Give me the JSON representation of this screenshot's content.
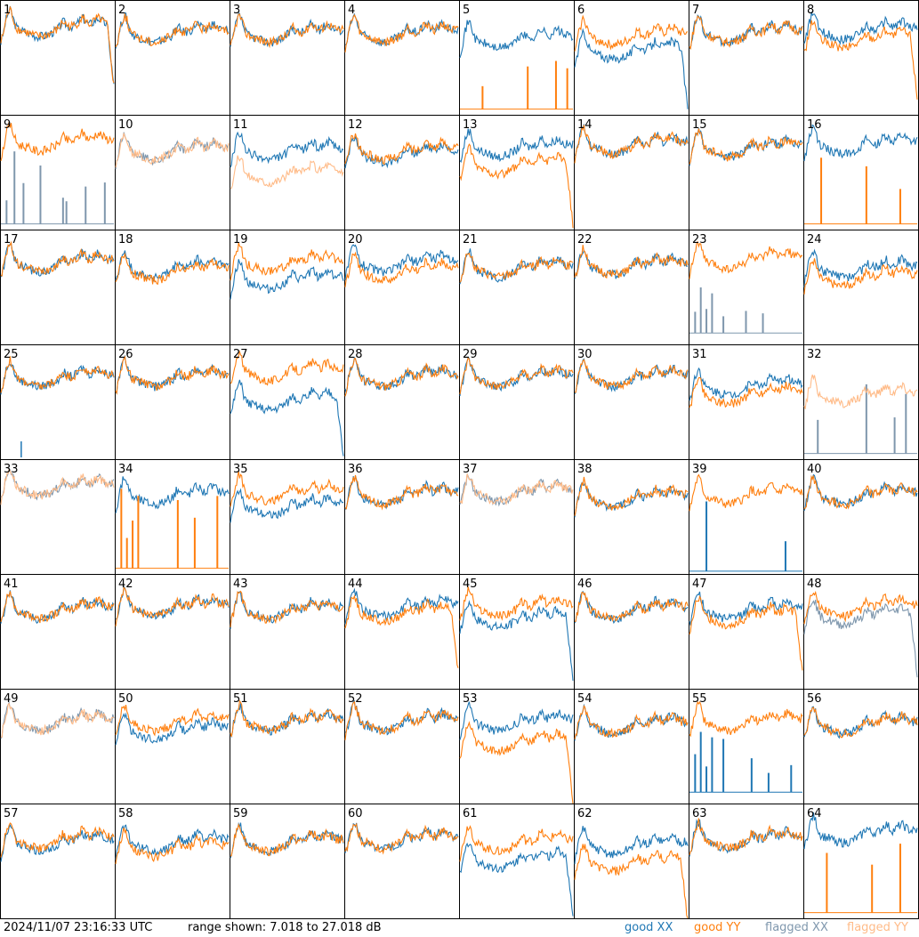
{
  "chart_data": {
    "type": "line",
    "panel_count": 64,
    "columns": 8,
    "rows": 8,
    "panel_labels": [
      "1",
      "2",
      "3",
      "4",
      "5",
      "6",
      "7",
      "8",
      "9",
      "10",
      "11",
      "12",
      "13",
      "14",
      "15",
      "16",
      "17",
      "18",
      "19",
      "20",
      "21",
      "22",
      "23",
      "24",
      "25",
      "26",
      "27",
      "28",
      "29",
      "30",
      "31",
      "32",
      "33",
      "34",
      "35",
      "36",
      "37",
      "38",
      "39",
      "40",
      "41",
      "42",
      "43",
      "44",
      "45",
      "46",
      "47",
      "48",
      "49",
      "50",
      "51",
      "52",
      "53",
      "54",
      "55",
      "56",
      "57",
      "58",
      "59",
      "60",
      "61",
      "62",
      "63",
      "64"
    ],
    "ylim": [
      7.018,
      27.018
    ],
    "series_styles": {
      "good_xx": "#1f77b4",
      "good_yy": "#ff7f0e",
      "flagged_xx": "#7f97ad",
      "flagged_yy": "#ffbb88"
    },
    "panels": [
      {
        "xx": "good",
        "yy": "good",
        "xx_level": 23.5,
        "yy_level": 23.5,
        "xx_drop": 1,
        "yy_drop": 1
      },
      {
        "xx": "good",
        "yy": "good",
        "xx_level": 22.5,
        "yy_level": 22.5
      },
      {
        "xx": "good",
        "yy": "good",
        "xx_level": 22.5,
        "yy_level": 22.5
      },
      {
        "xx": "good",
        "yy": "good",
        "xx_level": 22.5,
        "yy_level": 22.5
      },
      {
        "xx": "good",
        "yy": "spiky",
        "xx_level": 21.5,
        "yy_level": 8.0,
        "spikes": [
          0.2,
          0.6,
          0.85,
          0.95
        ]
      },
      {
        "xx": "good",
        "yy": "good",
        "xx_level": 19.5,
        "yy_level": 22.0,
        "xx_drop": 1
      },
      {
        "xx": "good",
        "yy": "good",
        "xx_level": 22.5,
        "yy_level": 22.5
      },
      {
        "xx": "good",
        "yy": "good",
        "xx_level": 23.0,
        "yy_level": 21.5,
        "yy_drop": 1
      },
      {
        "xx": "flagged_spiky",
        "yy": "good",
        "xx_level": 8.0,
        "yy_level": 23.5,
        "spikes": [
          0.05,
          0.12,
          0.2,
          0.35,
          0.55,
          0.58,
          0.75,
          0.92
        ]
      },
      {
        "xx": "flagged",
        "yy": "flagged",
        "xx_level": 22.0,
        "yy_level": 22.0
      },
      {
        "xx": "good",
        "yy": "flagged",
        "xx_level": 22.0,
        "yy_level": 18.0
      },
      {
        "xx": "good",
        "yy": "good",
        "xx_level": 21.5,
        "yy_level": 22.0
      },
      {
        "xx": "good",
        "yy": "good",
        "xx_level": 22.5,
        "yy_level": 19.5,
        "yy_drop": 1
      },
      {
        "xx": "good",
        "yy": "good",
        "xx_level": 23.0,
        "yy_level": 23.0
      },
      {
        "xx": "good",
        "yy": "good",
        "xx_level": 22.5,
        "yy_level": 22.5
      },
      {
        "xx": "good",
        "yy": "spiky",
        "xx_level": 23.0,
        "yy_level": 8.0,
        "spikes": [
          0.15,
          0.55,
          0.85
        ]
      },
      {
        "xx": "good",
        "yy": "good",
        "xx_level": 22.5,
        "yy_level": 22.5
      },
      {
        "xx": "good",
        "yy": "good",
        "xx_level": 21.5,
        "yy_level": 21.0
      },
      {
        "xx": "good",
        "yy": "good",
        "xx_level": 19.5,
        "yy_level": 22.5
      },
      {
        "xx": "good",
        "yy": "good",
        "xx_level": 22.5,
        "yy_level": 21.0
      },
      {
        "xx": "good",
        "yy": "good",
        "xx_level": 21.5,
        "yy_level": 21.5
      },
      {
        "xx": "good",
        "yy": "good",
        "xx_level": 22.0,
        "yy_level": 22.0
      },
      {
        "xx": "flagged_spiky",
        "yy": "good",
        "xx_level": 9.0,
        "yy_level": 23.0,
        "spikes": [
          0.05,
          0.1,
          0.15,
          0.2,
          0.3,
          0.5,
          0.65
        ]
      },
      {
        "xx": "good",
        "yy": "good",
        "xx_level": 21.5,
        "yy_level": 20.0
      },
      {
        "xx": "good",
        "yy": "good",
        "xx_level": 22.5,
        "yy_level": 22.5,
        "marker": 0.18
      },
      {
        "xx": "good",
        "yy": "good",
        "xx_level": 22.5,
        "yy_level": 22.5
      },
      {
        "xx": "good",
        "yy": "good",
        "xx_level": 18.5,
        "yy_level": 23.5,
        "xx_drop": 1
      },
      {
        "xx": "good",
        "yy": "good",
        "xx_level": 22.5,
        "yy_level": 22.5
      },
      {
        "xx": "good",
        "yy": "good",
        "xx_level": 22.5,
        "yy_level": 22.5
      },
      {
        "xx": "good",
        "yy": "good",
        "xx_level": 22.5,
        "yy_level": 22.5
      },
      {
        "xx": "good",
        "yy": "good",
        "xx_level": 21.0,
        "yy_level": 19.5
      },
      {
        "xx": "flagged_spiky",
        "yy": "flagged",
        "xx_level": 8.0,
        "yy_level": 19.5,
        "spikes": [
          0.12,
          0.55,
          0.8,
          0.9
        ]
      },
      {
        "xx": "flagged",
        "yy": "flagged",
        "xx_level": 23.5,
        "yy_level": 23.5
      },
      {
        "xx": "good",
        "yy": "spiky_good",
        "xx_level": 22.0,
        "yy_level": 8.0,
        "spikes": [
          0.05,
          0.1,
          0.15,
          0.2,
          0.55,
          0.7,
          0.9
        ]
      },
      {
        "xx": "good",
        "yy": "good",
        "xx_level": 20.0,
        "yy_level": 22.5
      },
      {
        "xx": "good",
        "yy": "good",
        "xx_level": 22.0,
        "yy_level": 22.0
      },
      {
        "xx": "flagged",
        "yy": "flagged",
        "xx_level": 22.5,
        "yy_level": 22.5
      },
      {
        "xx": "good",
        "yy": "good",
        "xx_level": 21.5,
        "yy_level": 21.5
      },
      {
        "xx": "spiky",
        "yy": "good",
        "xx_level": 7.5,
        "yy_level": 22.0,
        "spikes": [
          0.15,
          0.85
        ]
      },
      {
        "xx": "good",
        "yy": "good",
        "xx_level": 22.0,
        "yy_level": 22.0
      },
      {
        "xx": "good",
        "yy": "good",
        "xx_level": 22.0,
        "yy_level": 22.0
      },
      {
        "xx": "good",
        "yy": "good",
        "xx_level": 22.5,
        "yy_level": 22.5
      },
      {
        "xx": "good",
        "yy": "good",
        "xx_level": 22.0,
        "yy_level": 22.0
      },
      {
        "xx": "good",
        "yy": "good",
        "xx_level": 22.5,
        "yy_level": 21.5,
        "yy_drop": 1
      },
      {
        "xx": "good",
        "yy": "good",
        "xx_level": 20.5,
        "yy_level": 22.5,
        "xx_drop": 1
      },
      {
        "xx": "good",
        "yy": "good",
        "xx_level": 22.0,
        "yy_level": 22.0
      },
      {
        "xx": "good",
        "yy": "good",
        "xx_level": 22.0,
        "yy_level": 21.0,
        "yy_drop": 1
      },
      {
        "xx": "flagged",
        "yy": "good",
        "xx_level": 21.0,
        "yy_level": 22.5,
        "xx_drop": 1
      },
      {
        "xx": "flagged",
        "yy": "flagged",
        "xx_level": 22.5,
        "yy_level": 22.5
      },
      {
        "xx": "good",
        "yy": "good",
        "xx_level": 21.0,
        "yy_level": 22.5
      },
      {
        "xx": "good",
        "yy": "good",
        "xx_level": 22.5,
        "yy_level": 22.5
      },
      {
        "xx": "good",
        "yy": "good",
        "xx_level": 22.5,
        "yy_level": 22.5
      },
      {
        "xx": "good",
        "yy": "good",
        "xx_level": 22.5,
        "yy_level": 19.0,
        "yy_drop": 1
      },
      {
        "xx": "good",
        "yy": "good",
        "xx_level": 22.0,
        "yy_level": 22.0
      },
      {
        "xx": "spiky_good",
        "yy": "good",
        "xx_level": 9.0,
        "yy_level": 22.5,
        "spikes": [
          0.05,
          0.1,
          0.15,
          0.2,
          0.3,
          0.55,
          0.7,
          0.9
        ]
      },
      {
        "xx": "good",
        "yy": "good",
        "xx_level": 22.0,
        "yy_level": 22.0
      },
      {
        "xx": "good",
        "yy": "good",
        "xx_level": 21.5,
        "yy_level": 22.0
      },
      {
        "xx": "good",
        "yy": "good",
        "xx_level": 21.5,
        "yy_level": 20.5
      },
      {
        "xx": "good",
        "yy": "good",
        "xx_level": 21.5,
        "yy_level": 21.5
      },
      {
        "xx": "good",
        "yy": "good",
        "xx_level": 22.0,
        "yy_level": 22.0
      },
      {
        "xx": "good",
        "yy": "good",
        "xx_level": 18.5,
        "yy_level": 21.5,
        "xx_drop": 1
      },
      {
        "xx": "good",
        "yy": "good",
        "xx_level": 21.0,
        "yy_level": 18.0,
        "yy_drop": 1
      },
      {
        "xx": "good",
        "yy": "good",
        "xx_level": 22.0,
        "yy_level": 22.0
      },
      {
        "xx": "good",
        "yy": "spiky",
        "xx_level": 23.0,
        "yy_level": 8.0,
        "spikes": [
          0.2,
          0.6,
          0.85
        ]
      }
    ]
  },
  "footer": {
    "timestamp": "2024/11/07 23:16:33 UTC",
    "range_text": "range shown: 7.018 to 27.018 dB",
    "legend": {
      "good_xx": "good XX",
      "good_yy": "good YY",
      "flagged_xx": "flagged XX",
      "flagged_yy": "flagged YY"
    }
  }
}
